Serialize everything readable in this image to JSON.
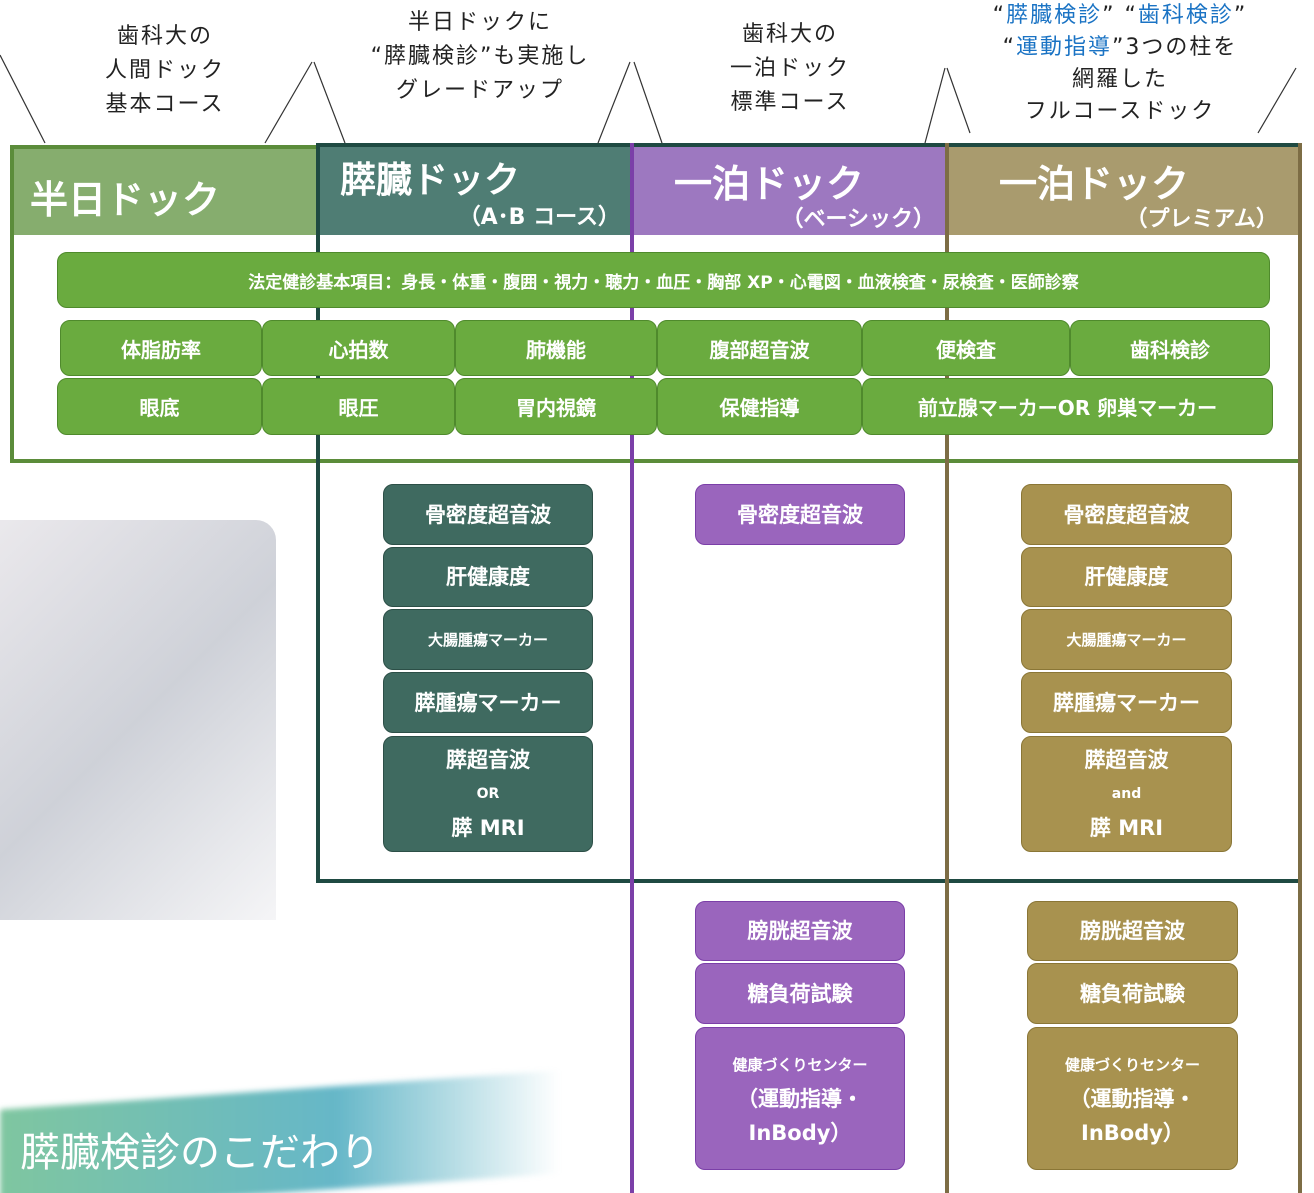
{
  "callouts": [
    {
      "lines": [
        "歯科大の",
        "人間ドック",
        "基本コース"
      ]
    },
    {
      "lines": [
        "半日ドックに",
        "“膵臓検診”も実施し",
        "グレードアップ"
      ]
    },
    {
      "lines": [
        "歯科大の",
        "一泊ドック",
        "標準コース"
      ]
    }
  ],
  "premium_callout": {
    "lines": [
      [
        "“",
        "膵臓検診",
        "” “",
        "歯科検診",
        "”"
      ],
      [
        "“",
        "運動指導",
        "”3つの柱を"
      ],
      [
        "網羅した"
      ],
      [
        "フルコースドック"
      ]
    ]
  },
  "courses": [
    {
      "name": "半日ドック"
    },
    {
      "name": "膵臓ドック",
      "sub": "（A･B コース）"
    },
    {
      "name": "一泊ドック",
      "sub": "（ベーシック）"
    },
    {
      "name": "一泊ドック",
      "sub": "（プレミアム）"
    }
  ],
  "common_items": {
    "basic": "法定健診基本項目：身長・体重・腹囲・視力・聴力・血圧・胸部 XP・心電図・血液検査・尿検査・医師診察",
    "row1": [
      "体脂肪率",
      "心拍数",
      "肺機能",
      "腹部超音波",
      "便検査",
      "歯科検診"
    ],
    "row2": [
      "眼底",
      "眼圧",
      "胃内視鏡",
      "保健指導",
      "前立腺マーカーOR 卵巣マーカー"
    ]
  },
  "pancreas_items": [
    [
      "骨密度超音波"
    ],
    [
      "肝健康度"
    ],
    [
      "大腸腫瘍マーカー"
    ],
    [
      "膵腫瘍マーカー"
    ],
    [
      "膵超音波",
      "OR",
      "膵 MRI"
    ]
  ],
  "basic_items": [
    [
      "骨密度超音波"
    ]
  ],
  "basic_extra_items": [
    [
      "膀胱超音波"
    ],
    [
      "糖負荷試験"
    ],
    [
      "健康づくりセンター",
      "（運動指導・",
      "InBody）"
    ]
  ],
  "premium_items": [
    [
      "骨密度超音波"
    ],
    [
      "肝健康度"
    ],
    [
      "大腸腫瘍マーカー"
    ],
    [
      "膵腫瘍マーカー"
    ],
    [
      "膵超音波",
      "and",
      "膵 MRI"
    ]
  ],
  "premium_extra_items": [
    [
      "膀胱超音波"
    ],
    [
      "糖負荷試験"
    ],
    [
      "健康づくりセンター",
      "（運動指導・",
      "InBody）"
    ]
  ],
  "banner": "膵臓検診のこだわり"
}
